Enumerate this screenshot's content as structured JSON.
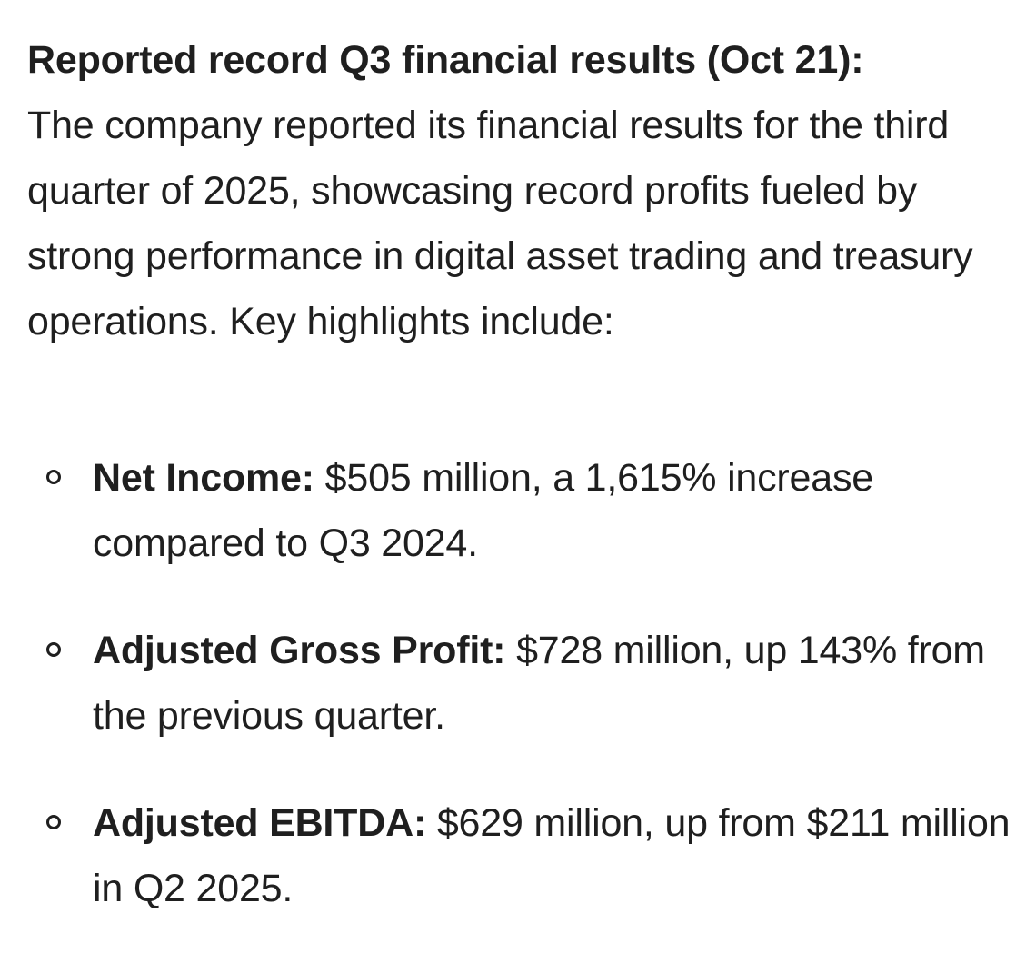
{
  "section": {
    "heading": "Reported record Q3 financial results (Oct 21):",
    "body": "The company reported its financial results for the third quarter of 2025, showcasing record profits fueled by strong performance in digital asset trading and treasury operations. Key highlights include:"
  },
  "highlights": [
    {
      "term": "Net Income:",
      "text": "$505 million, a 1,615% increase compared to Q3 2024."
    },
    {
      "term": "Adjusted Gross Profit:",
      "text": "$728 million, up 143% from the previous quarter."
    },
    {
      "term": "Adjusted EBITDA:",
      "text": "$629 million, up from $211 million in Q2 2025."
    }
  ]
}
